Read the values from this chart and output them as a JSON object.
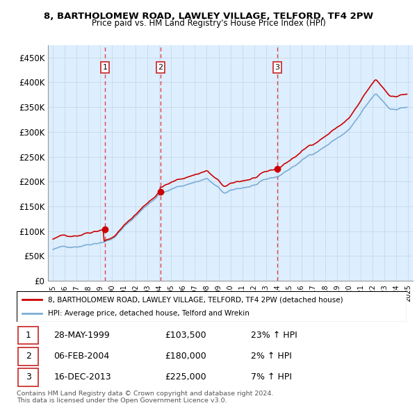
{
  "title_line1": "8, BARTHOLOMEW ROAD, LAWLEY VILLAGE, TELFORD, TF4 2PW",
  "title_line2": "Price paid vs. HM Land Registry's House Price Index (HPI)",
  "ylim": [
    0,
    475000
  ],
  "yticks": [
    0,
    50000,
    100000,
    150000,
    200000,
    250000,
    300000,
    350000,
    400000,
    450000
  ],
  "ytick_labels": [
    "£0",
    "£50K",
    "£100K",
    "£150K",
    "£200K",
    "£250K",
    "£300K",
    "£350K",
    "£400K",
    "£450K"
  ],
  "sale_dates": [
    "1999-05-28",
    "2004-02-06",
    "2013-12-16"
  ],
  "sale_prices": [
    103500,
    180000,
    225000
  ],
  "sale_labels": [
    "1",
    "2",
    "3"
  ],
  "legend_label_red": "8, BARTHOLOMEW ROAD, LAWLEY VILLAGE, TELFORD, TF4 2PW (detached house)",
  "legend_label_blue": "HPI: Average price, detached house, Telford and Wrekin",
  "table_rows": [
    [
      "1",
      "28-MAY-1999",
      "£103,500",
      "23% ↑ HPI"
    ],
    [
      "2",
      "06-FEB-2004",
      "£180,000",
      "2% ↑ HPI"
    ],
    [
      "3",
      "16-DEC-2013",
      "£225,000",
      "7% ↑ HPI"
    ]
  ],
  "footer_line1": "Contains HM Land Registry data © Crown copyright and database right 2024.",
  "footer_line2": "This data is licensed under the Open Government Licence v3.0.",
  "red_color": "#cc0000",
  "blue_color": "#7aadd4",
  "vline_color": "#dd4444",
  "bg_color": "#ddeeff",
  "grid_color": "#c8d8e8",
  "box_color": "#cc3333"
}
